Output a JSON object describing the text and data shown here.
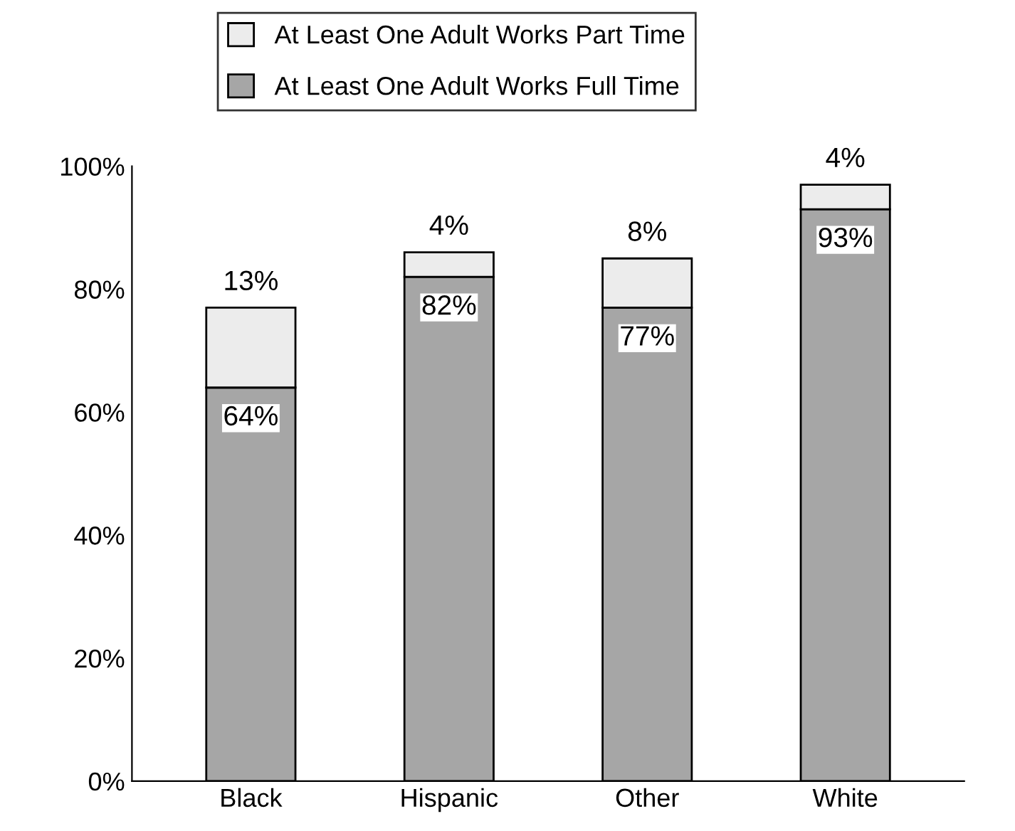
{
  "chart_data": {
    "type": "bar",
    "stacked": true,
    "categories": [
      "Black",
      "Hispanic",
      "Other",
      "White"
    ],
    "series": [
      {
        "name": "At Least One Adult Works Full Time",
        "color": "#a6a6a6",
        "values": [
          64,
          82,
          77,
          93
        ],
        "value_labels": [
          "64%",
          "82%",
          "77%",
          "93%"
        ]
      },
      {
        "name": "At Least One Adult Works Part Time",
        "color": "#ececec",
        "values": [
          13,
          4,
          8,
          4
        ],
        "value_labels": [
          "13%",
          "4%",
          "8%",
          "4%"
        ]
      }
    ],
    "ylim": [
      0,
      100
    ],
    "yticks": [
      {
        "value": 0,
        "label": "0%"
      },
      {
        "value": 20,
        "label": "20%"
      },
      {
        "value": 40,
        "label": "40%"
      },
      {
        "value": 60,
        "label": "60%"
      },
      {
        "value": 80,
        "label": "80%"
      },
      {
        "value": 100,
        "label": "100%"
      }
    ],
    "grid": false,
    "legend": "top"
  }
}
